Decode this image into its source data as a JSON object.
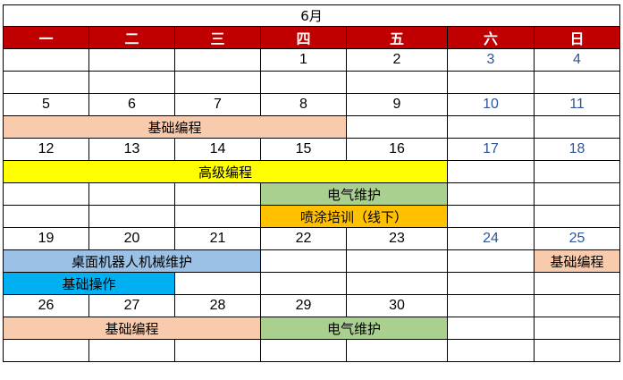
{
  "title": "6月",
  "weekdays": [
    "一",
    "二",
    "三",
    "四",
    "五",
    "六",
    "日"
  ],
  "colors": {
    "header_bg": "#c00000",
    "weekend_text": "#2f5597",
    "peach": "#f8cbad",
    "yellow": "#ffff00",
    "green": "#a9d08e",
    "orange": "#ffc000",
    "light_blue": "#9bc2e6",
    "cyan": "#00b0f0"
  },
  "rows": [
    {
      "type": "date",
      "cells": [
        {
          "text": ""
        },
        {
          "text": ""
        },
        {
          "text": ""
        },
        {
          "text": "1"
        },
        {
          "text": "2"
        },
        {
          "text": "3",
          "weekend": true
        },
        {
          "text": "4",
          "weekend": true
        }
      ]
    },
    {
      "type": "event",
      "cells": [
        {
          "text": ""
        },
        {
          "text": ""
        },
        {
          "text": ""
        },
        {
          "text": ""
        },
        {
          "text": ""
        },
        {
          "text": ""
        },
        {
          "text": ""
        }
      ]
    },
    {
      "type": "date",
      "cells": [
        {
          "text": "5"
        },
        {
          "text": "6"
        },
        {
          "text": "7"
        },
        {
          "text": "8"
        },
        {
          "text": "9"
        },
        {
          "text": "10",
          "weekend": true
        },
        {
          "text": "11",
          "weekend": true
        }
      ]
    },
    {
      "type": "event",
      "cells": [
        {
          "text": "基础编程",
          "span": 4,
          "color": "peach"
        },
        {
          "text": ""
        },
        {
          "text": ""
        },
        {
          "text": ""
        }
      ]
    },
    {
      "type": "date",
      "cells": [
        {
          "text": "12"
        },
        {
          "text": "13"
        },
        {
          "text": "14"
        },
        {
          "text": "15"
        },
        {
          "text": "16"
        },
        {
          "text": "17",
          "weekend": true
        },
        {
          "text": "18",
          "weekend": true
        }
      ]
    },
    {
      "type": "event",
      "cells": [
        {
          "text": "高级编程",
          "span": 5,
          "color": "yellow"
        },
        {
          "text": ""
        },
        {
          "text": ""
        }
      ]
    },
    {
      "type": "event",
      "cells": [
        {
          "text": ""
        },
        {
          "text": ""
        },
        {
          "text": ""
        },
        {
          "text": "电气维护",
          "span": 2,
          "color": "green"
        },
        {
          "text": ""
        },
        {
          "text": ""
        }
      ]
    },
    {
      "type": "event",
      "cells": [
        {
          "text": ""
        },
        {
          "text": ""
        },
        {
          "text": ""
        },
        {
          "text": "喷涂培训（线下）",
          "span": 2,
          "color": "orange"
        },
        {
          "text": ""
        },
        {
          "text": ""
        }
      ]
    },
    {
      "type": "date",
      "cells": [
        {
          "text": "19"
        },
        {
          "text": "20"
        },
        {
          "text": "21"
        },
        {
          "text": "22"
        },
        {
          "text": "23"
        },
        {
          "text": "24",
          "weekend": true
        },
        {
          "text": "25",
          "weekend": true
        }
      ]
    },
    {
      "type": "event",
      "cells": [
        {
          "text": "桌面机器人机械维护",
          "span": 3,
          "color": "light_blue"
        },
        {
          "text": ""
        },
        {
          "text": ""
        },
        {
          "text": ""
        },
        {
          "text": "基础编程",
          "color": "peach"
        }
      ]
    },
    {
      "type": "event",
      "cells": [
        {
          "text": "基础操作",
          "span": 2,
          "color": "cyan"
        },
        {
          "text": ""
        },
        {
          "text": ""
        },
        {
          "text": ""
        },
        {
          "text": ""
        },
        {
          "text": ""
        }
      ]
    },
    {
      "type": "date",
      "cells": [
        {
          "text": "26"
        },
        {
          "text": "27"
        },
        {
          "text": "28"
        },
        {
          "text": "29"
        },
        {
          "text": "30"
        },
        {
          "text": ""
        },
        {
          "text": ""
        }
      ]
    },
    {
      "type": "event",
      "cells": [
        {
          "text": "基础编程",
          "span": 3,
          "color": "peach"
        },
        {
          "text": "电气维护",
          "span": 2,
          "color": "green"
        },
        {
          "text": ""
        },
        {
          "text": ""
        }
      ]
    },
    {
      "type": "event",
      "cells": [
        {
          "text": ""
        },
        {
          "text": ""
        },
        {
          "text": ""
        },
        {
          "text": ""
        },
        {
          "text": ""
        },
        {
          "text": ""
        },
        {
          "text": ""
        }
      ]
    }
  ]
}
